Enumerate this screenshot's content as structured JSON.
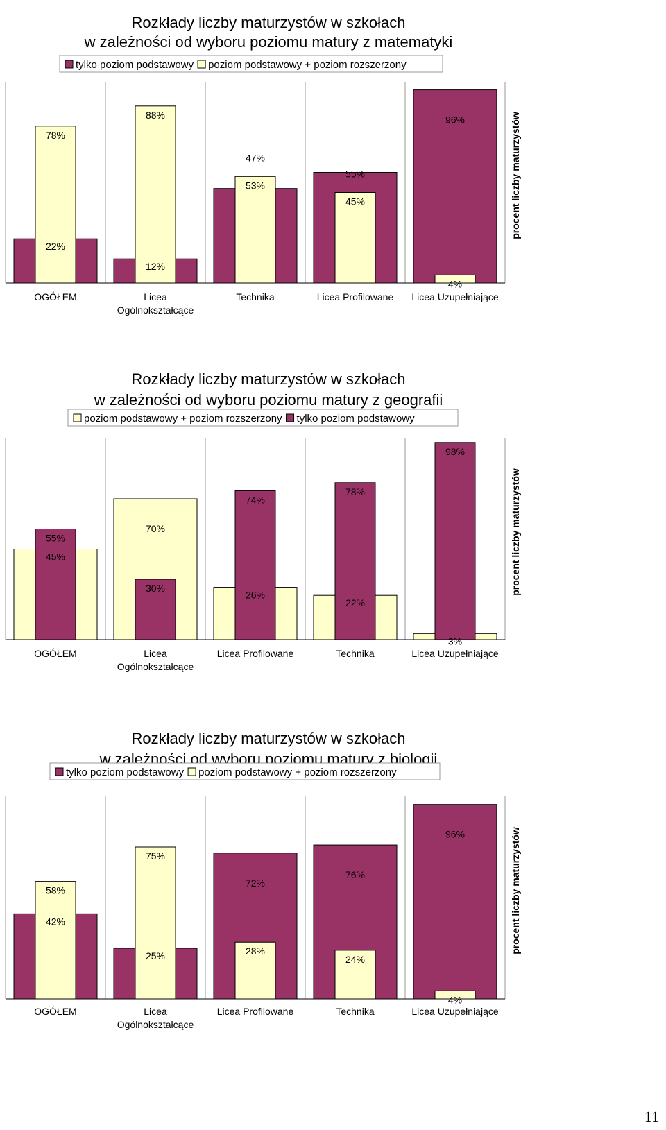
{
  "colors": {
    "basic": "#993366",
    "extended": "#ffffcc",
    "axis": "#000000",
    "grid": "#cccccc"
  },
  "page_number": "11",
  "chart_data": [
    {
      "type": "bar",
      "title_lines": [
        "Rozkłady liczby maturzystów w szkołach",
        "w zależności od wyboru poziomu matury z matematyki"
      ],
      "legend": [
        {
          "key": "basic",
          "label": "tylko poziom podstawowy"
        },
        {
          "key": "extended",
          "label": "poziom podstawowy + poziom rozszerzony"
        }
      ],
      "ylabel": "procent liczby maturzystów",
      "ylim": [
        0,
        100
      ],
      "categories": [
        [
          "OGÓŁEM"
        ],
        [
          "Licea",
          "Ogólnokształcące"
        ],
        [
          "Technika"
        ],
        [
          "Licea Profilowane"
        ],
        [
          "Licea Uzupełniające"
        ]
      ],
      "series": [
        {
          "key": "basic",
          "name": "tylko poziom podstawowy",
          "values": [
            22,
            12,
            47,
            55,
            96
          ]
        },
        {
          "key": "extended",
          "name": "poziom podstawowy + poziom rozszerzony",
          "values": [
            78,
            88,
            53,
            45,
            4
          ]
        }
      ]
    },
    {
      "type": "bar",
      "title_lines": [
        "Rozkłady liczby maturzystów w szkołach",
        "w zależności od wyboru poziomu matury z geografii"
      ],
      "legend": [
        {
          "key": "extended",
          "label": "poziom podstawowy + poziom rozszerzony"
        },
        {
          "key": "basic",
          "label": "tylko poziom podstawowy"
        }
      ],
      "ylabel": "procent liczby maturzystów",
      "ylim": [
        0,
        100
      ],
      "categories": [
        [
          "OGÓŁEM"
        ],
        [
          "Licea",
          "Ogólnokształcące"
        ],
        [
          "Licea Profilowane"
        ],
        [
          "Technika"
        ],
        [
          "Licea Uzupełniające"
        ]
      ],
      "series": [
        {
          "key": "extended",
          "name": "poziom podstawowy + poziom rozszerzony",
          "values": [
            45,
            70,
            26,
            22,
            3
          ]
        },
        {
          "key": "basic",
          "name": "tylko poziom podstawowy",
          "values": [
            55,
            30,
            74,
            78,
            98
          ]
        }
      ]
    },
    {
      "type": "bar",
      "title_lines": [
        "Rozkłady liczby maturzystów w szkołach",
        "w zależności od wyboru poziomu matury z biologii"
      ],
      "legend": [
        {
          "key": "basic",
          "label": "tylko poziom podstawowy"
        },
        {
          "key": "extended",
          "label": "poziom podstawowy + poziom rozszerzony"
        }
      ],
      "ylabel": "procent liczby maturzystów",
      "ylim": [
        0,
        100
      ],
      "categories": [
        [
          "OGÓŁEM"
        ],
        [
          "Licea",
          "Ogólnokształcące"
        ],
        [
          "Licea Profilowane"
        ],
        [
          "Technika"
        ],
        [
          "Licea Uzupełniające"
        ]
      ],
      "series": [
        {
          "key": "basic",
          "name": "tylko poziom podstawowy",
          "values": [
            42,
            25,
            72,
            76,
            96
          ]
        },
        {
          "key": "extended",
          "name": "poziom podstawowy + poziom rozszerzony",
          "values": [
            58,
            75,
            28,
            24,
            4
          ]
        }
      ]
    }
  ]
}
